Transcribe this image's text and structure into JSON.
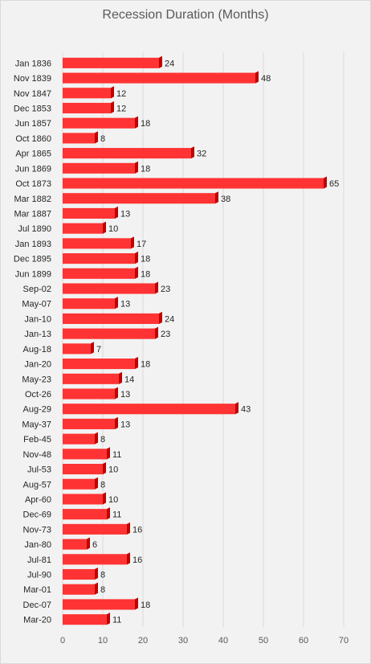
{
  "chart_data": {
    "type": "bar",
    "orientation": "horizontal",
    "title": "Recession Duration (Months)",
    "xlabel": "",
    "ylabel": "",
    "categories": [
      "Jan 1836",
      "Nov 1839",
      "Nov 1847",
      "Dec 1853",
      "Jun 1857",
      "Oct 1860",
      "Apr 1865",
      "Jun 1869",
      "Oct 1873",
      "Mar 1882",
      "Mar 1887",
      "Jul 1890",
      "Jan 1893",
      "Dec 1895",
      "Jun 1899",
      "Sep-02",
      "May-07",
      "Jan-10",
      "Jan-13",
      "Aug-18",
      "Jan-20",
      "May-23",
      "Oct-26",
      "Aug-29",
      "May-37",
      "Feb-45",
      "Nov-48",
      "Jul-53",
      "Aug-57",
      "Apr-60",
      "Dec-69",
      "Nov-73",
      "Jan-80",
      "Jul-81",
      "Jul-90",
      "Mar-01",
      "Dec-07",
      "Mar-20"
    ],
    "values": [
      24,
      48,
      12,
      12,
      18,
      8,
      32,
      18,
      65,
      38,
      13,
      10,
      17,
      18,
      18,
      23,
      13,
      24,
      23,
      7,
      18,
      14,
      13,
      43,
      13,
      8,
      11,
      10,
      8,
      10,
      11,
      16,
      6,
      16,
      8,
      8,
      18,
      11
    ],
    "xlim": [
      0,
      70
    ],
    "xticks": [
      0,
      10,
      20,
      30,
      40,
      50,
      60,
      70
    ],
    "grid": "vertical",
    "legend": "none",
    "bar_color": "#ff3333",
    "bar_edge_color": "#c00000"
  }
}
